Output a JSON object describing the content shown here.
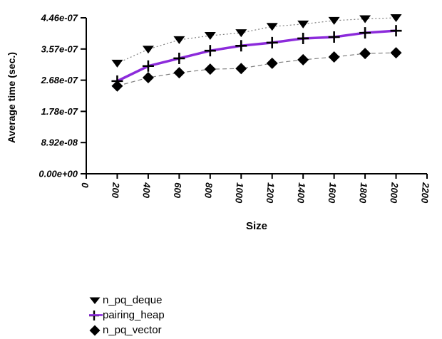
{
  "page": {
    "background": "#ffffff",
    "text_color": "#000000"
  },
  "chart_data": {
    "type": "line",
    "title": "",
    "xlabel": "Size",
    "ylabel": "Average time (sec.)",
    "xlim": [
      0,
      2200
    ],
    "ylim": [
      0,
      4.46e-07
    ],
    "grid": false,
    "legend_position": "bottom-left",
    "x_ticks": [
      {
        "value": 0,
        "label": "0"
      },
      {
        "value": 200,
        "label": "200"
      },
      {
        "value": 400,
        "label": "400"
      },
      {
        "value": 600,
        "label": "600"
      },
      {
        "value": 800,
        "label": "800"
      },
      {
        "value": 1000,
        "label": "1000"
      },
      {
        "value": 1200,
        "label": "1200"
      },
      {
        "value": 1400,
        "label": "1400"
      },
      {
        "value": 1600,
        "label": "1600"
      },
      {
        "value": 1800,
        "label": "1800"
      },
      {
        "value": 2000,
        "label": "2000"
      },
      {
        "value": 2200,
        "label": "2200"
      }
    ],
    "y_ticks": [
      {
        "value": 0,
        "label": "0.00e+00"
      },
      {
        "value": 8.92e-08,
        "label": "8.92e-08"
      },
      {
        "value": 1.784e-07,
        "label": "1.78e-07"
      },
      {
        "value": 2.676e-07,
        "label": "2.68e-07"
      },
      {
        "value": 3.568e-07,
        "label": "3.57e-07"
      },
      {
        "value": 4.46e-07,
        "label": "4.46e-07"
      }
    ],
    "x": [
      200,
      400,
      600,
      800,
      1000,
      1200,
      1400,
      1600,
      1800,
      2000
    ],
    "series": [
      {
        "name": "n_pq_deque",
        "marker": "triangle-down",
        "marker_color": "#000000",
        "line_color": "#808080",
        "line_style": "dotted",
        "values": [
          3.16e-07,
          3.56e-07,
          3.83e-07,
          3.95e-07,
          4.03e-07,
          4.21e-07,
          4.28e-07,
          4.38e-07,
          4.43e-07,
          4.46e-07
        ]
      },
      {
        "name": "pairing_heap",
        "marker": "plus",
        "marker_color": "#000000",
        "line_color": "#8C2BDB",
        "line_style": "solid",
        "values": [
          2.65e-07,
          3.08e-07,
          3.3e-07,
          3.52e-07,
          3.66e-07,
          3.75e-07,
          3.87e-07,
          3.91e-07,
          4.03e-07,
          4.09e-07
        ]
      },
      {
        "name": "n_pq_vector",
        "marker": "diamond",
        "marker_color": "#000000",
        "line_color": "#808080",
        "line_style": "dashed",
        "values": [
          2.51e-07,
          2.75e-07,
          2.89e-07,
          2.99e-07,
          3.01e-07,
          3.16e-07,
          3.26e-07,
          3.34e-07,
          3.44e-07,
          3.46e-07
        ]
      }
    ]
  }
}
